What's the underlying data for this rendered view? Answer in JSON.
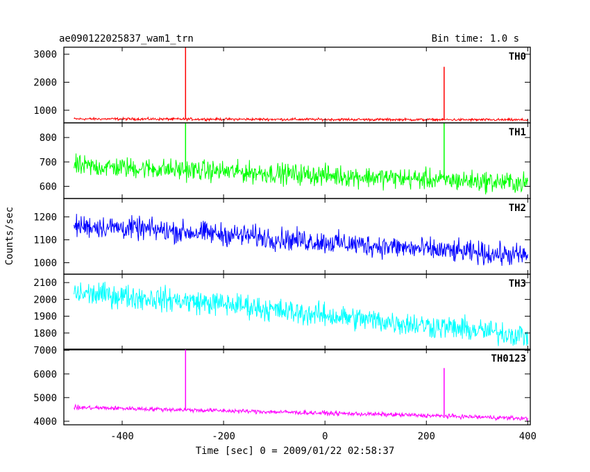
{
  "chart_data": {
    "type": "line",
    "title": "ae090122025837_wam1_trn",
    "subtitle": "Bin time: 1.0 s",
    "xlabel": "Time [sec] 0 = 2009/01/22 02:58:37",
    "ylabel": "Counts/sec",
    "xlim": [
      -515,
      405
    ],
    "xticks": [
      -400,
      -200,
      0,
      200,
      400
    ],
    "grid": false,
    "panels": [
      {
        "name": "TH0",
        "color": "#ff0000",
        "ylim": [
          550,
          3250
        ],
        "yticks": [
          1000,
          2000,
          3000
        ],
        "x": [
          -495,
          -450,
          -400,
          -350,
          -300,
          -250,
          -200,
          -150,
          -100,
          -50,
          0,
          50,
          100,
          150,
          200,
          250,
          300,
          350,
          400
        ],
        "y": [
          690,
          690,
          688,
          686,
          684,
          682,
          680,
          678,
          676,
          674,
          672,
          670,
          668,
          666,
          664,
          662,
          660,
          658,
          655
        ],
        "noise": 45,
        "spikes": [
          {
            "x": -275,
            "y": 3250
          },
          {
            "x": 235,
            "y": 2550
          }
        ]
      },
      {
        "name": "TH1",
        "color": "#00ff00",
        "ylim": [
          550,
          860
        ],
        "yticks": [
          600,
          700,
          800
        ],
        "x": [
          -495,
          -450,
          -400,
          -350,
          -300,
          -250,
          -200,
          -150,
          -100,
          -50,
          0,
          50,
          100,
          150,
          200,
          250,
          300,
          350,
          400
        ],
        "y": [
          682,
          680,
          677,
          673,
          669,
          665,
          661,
          657,
          653,
          649,
          645,
          641,
          637,
          633,
          629,
          625,
          621,
          617,
          613
        ],
        "noise": 42,
        "spikes": [
          {
            "x": -275,
            "y": 860
          },
          {
            "x": 235,
            "y": 860
          }
        ]
      },
      {
        "name": "TH2",
        "color": "#0000ff",
        "ylim": [
          950,
          1280
        ],
        "yticks": [
          1000,
          1100,
          1200
        ],
        "x": [
          -495,
          -450,
          -400,
          -350,
          -300,
          -250,
          -200,
          -150,
          -100,
          -50,
          0,
          50,
          100,
          150,
          200,
          250,
          300,
          350,
          400
        ],
        "y": [
          1160,
          1158,
          1152,
          1145,
          1138,
          1131,
          1124,
          1117,
          1105,
          1098,
          1090,
          1082,
          1074,
          1066,
          1058,
          1050,
          1043,
          1036,
          1030
        ],
        "noise": 48,
        "spikes": []
      },
      {
        "name": "TH3",
        "color": "#00ffff",
        "ylim": [
          1700,
          2150
        ],
        "yticks": [
          1800,
          1900,
          2000,
          2100
        ],
        "x": [
          -495,
          -450,
          -400,
          -350,
          -300,
          -250,
          -200,
          -150,
          -100,
          -50,
          0,
          50,
          100,
          150,
          200,
          250,
          300,
          350,
          400
        ],
        "y": [
          2035,
          2030,
          2020,
          2008,
          1996,
          1984,
          1972,
          1960,
          1935,
          1920,
          1905,
          1890,
          1875,
          1860,
          1845,
          1830,
          1815,
          1800,
          1785
        ],
        "noise": 70,
        "spikes": []
      },
      {
        "name": "TH0123",
        "color": "#ff00ff",
        "ylim": [
          3850,
          7050
        ],
        "yticks": [
          4000,
          5000,
          6000,
          7000
        ],
        "x": [
          -495,
          -450,
          -400,
          -350,
          -300,
          -250,
          -200,
          -150,
          -100,
          -50,
          0,
          50,
          100,
          150,
          200,
          250,
          300,
          350,
          400
        ],
        "y": [
          4580,
          4565,
          4545,
          4520,
          4495,
          4470,
          4445,
          4420,
          4395,
          4370,
          4345,
          4320,
          4295,
          4270,
          4240,
          4210,
          4180,
          4150,
          4110
        ],
        "noise": 90,
        "spikes": [
          {
            "x": -275,
            "y": 7050
          },
          {
            "x": 235,
            "y": 6250
          }
        ]
      }
    ]
  }
}
